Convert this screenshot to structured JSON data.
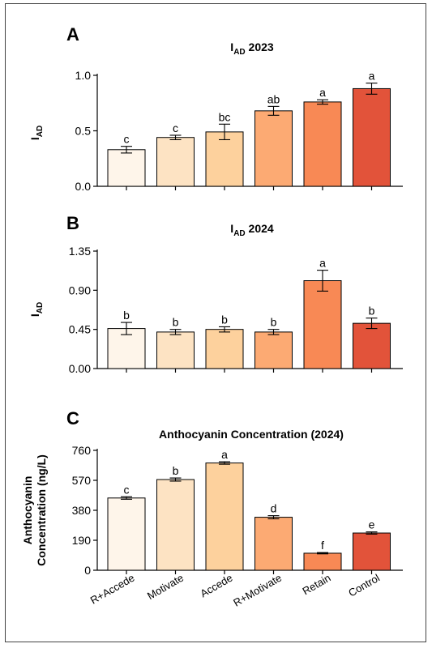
{
  "x_categories": [
    "R+Accede",
    "Motivate",
    "Accede",
    "R+Motivate",
    "Retain",
    "Control"
  ],
  "bar_colors": [
    "#fef5ea",
    "#fde3c3",
    "#fdd19d",
    "#fcaa73",
    "#f88955",
    "#e2533a"
  ],
  "chart_data": [
    {
      "panel": "A",
      "type": "bar",
      "title": "I",
      "title_sub": "AD",
      "title_suffix": " 2023",
      "ylabel": "I",
      "ylabel_sub": "AD",
      "ylim": [
        0,
        1.0
      ],
      "yticks": [
        "0.0",
        "0.5",
        "1.0"
      ],
      "ytick_values": [
        0,
        0.5,
        1.0
      ],
      "values": [
        0.33,
        0.44,
        0.49,
        0.68,
        0.76,
        0.88
      ],
      "errors": [
        0.03,
        0.02,
        0.07,
        0.04,
        0.02,
        0.05
      ],
      "letters": [
        "c",
        "c",
        "bc",
        "ab",
        "a",
        "a"
      ]
    },
    {
      "panel": "B",
      "type": "bar",
      "title": "I",
      "title_sub": "AD",
      "title_suffix": " 2024",
      "ylabel": "I",
      "ylabel_sub": "AD",
      "ylim": [
        0,
        1.35
      ],
      "yticks": [
        "0.00",
        "0.45",
        "0.90",
        "1.35"
      ],
      "ytick_values": [
        0,
        0.45,
        0.9,
        1.35
      ],
      "values": [
        0.46,
        0.42,
        0.45,
        0.42,
        1.01,
        0.52
      ],
      "errors": [
        0.07,
        0.03,
        0.03,
        0.03,
        0.12,
        0.06
      ],
      "letters": [
        "b",
        "b",
        "b",
        "b",
        "a",
        "b"
      ]
    },
    {
      "panel": "C",
      "type": "bar",
      "title": "Anthocyanin Concentration (2024)",
      "ylabel_lines": [
        "Anthocyanin",
        "Concentration (ng/L)"
      ],
      "ylim": [
        0,
        760
      ],
      "yticks": [
        "0",
        "190",
        "380",
        "570",
        "760"
      ],
      "ytick_values": [
        0,
        190,
        380,
        570,
        760
      ],
      "values": [
        458,
        575,
        680,
        336,
        108,
        236
      ],
      "errors": [
        8,
        10,
        8,
        10,
        4,
        7
      ],
      "letters": [
        "c",
        "b",
        "a",
        "d",
        "f",
        "e"
      ]
    }
  ]
}
